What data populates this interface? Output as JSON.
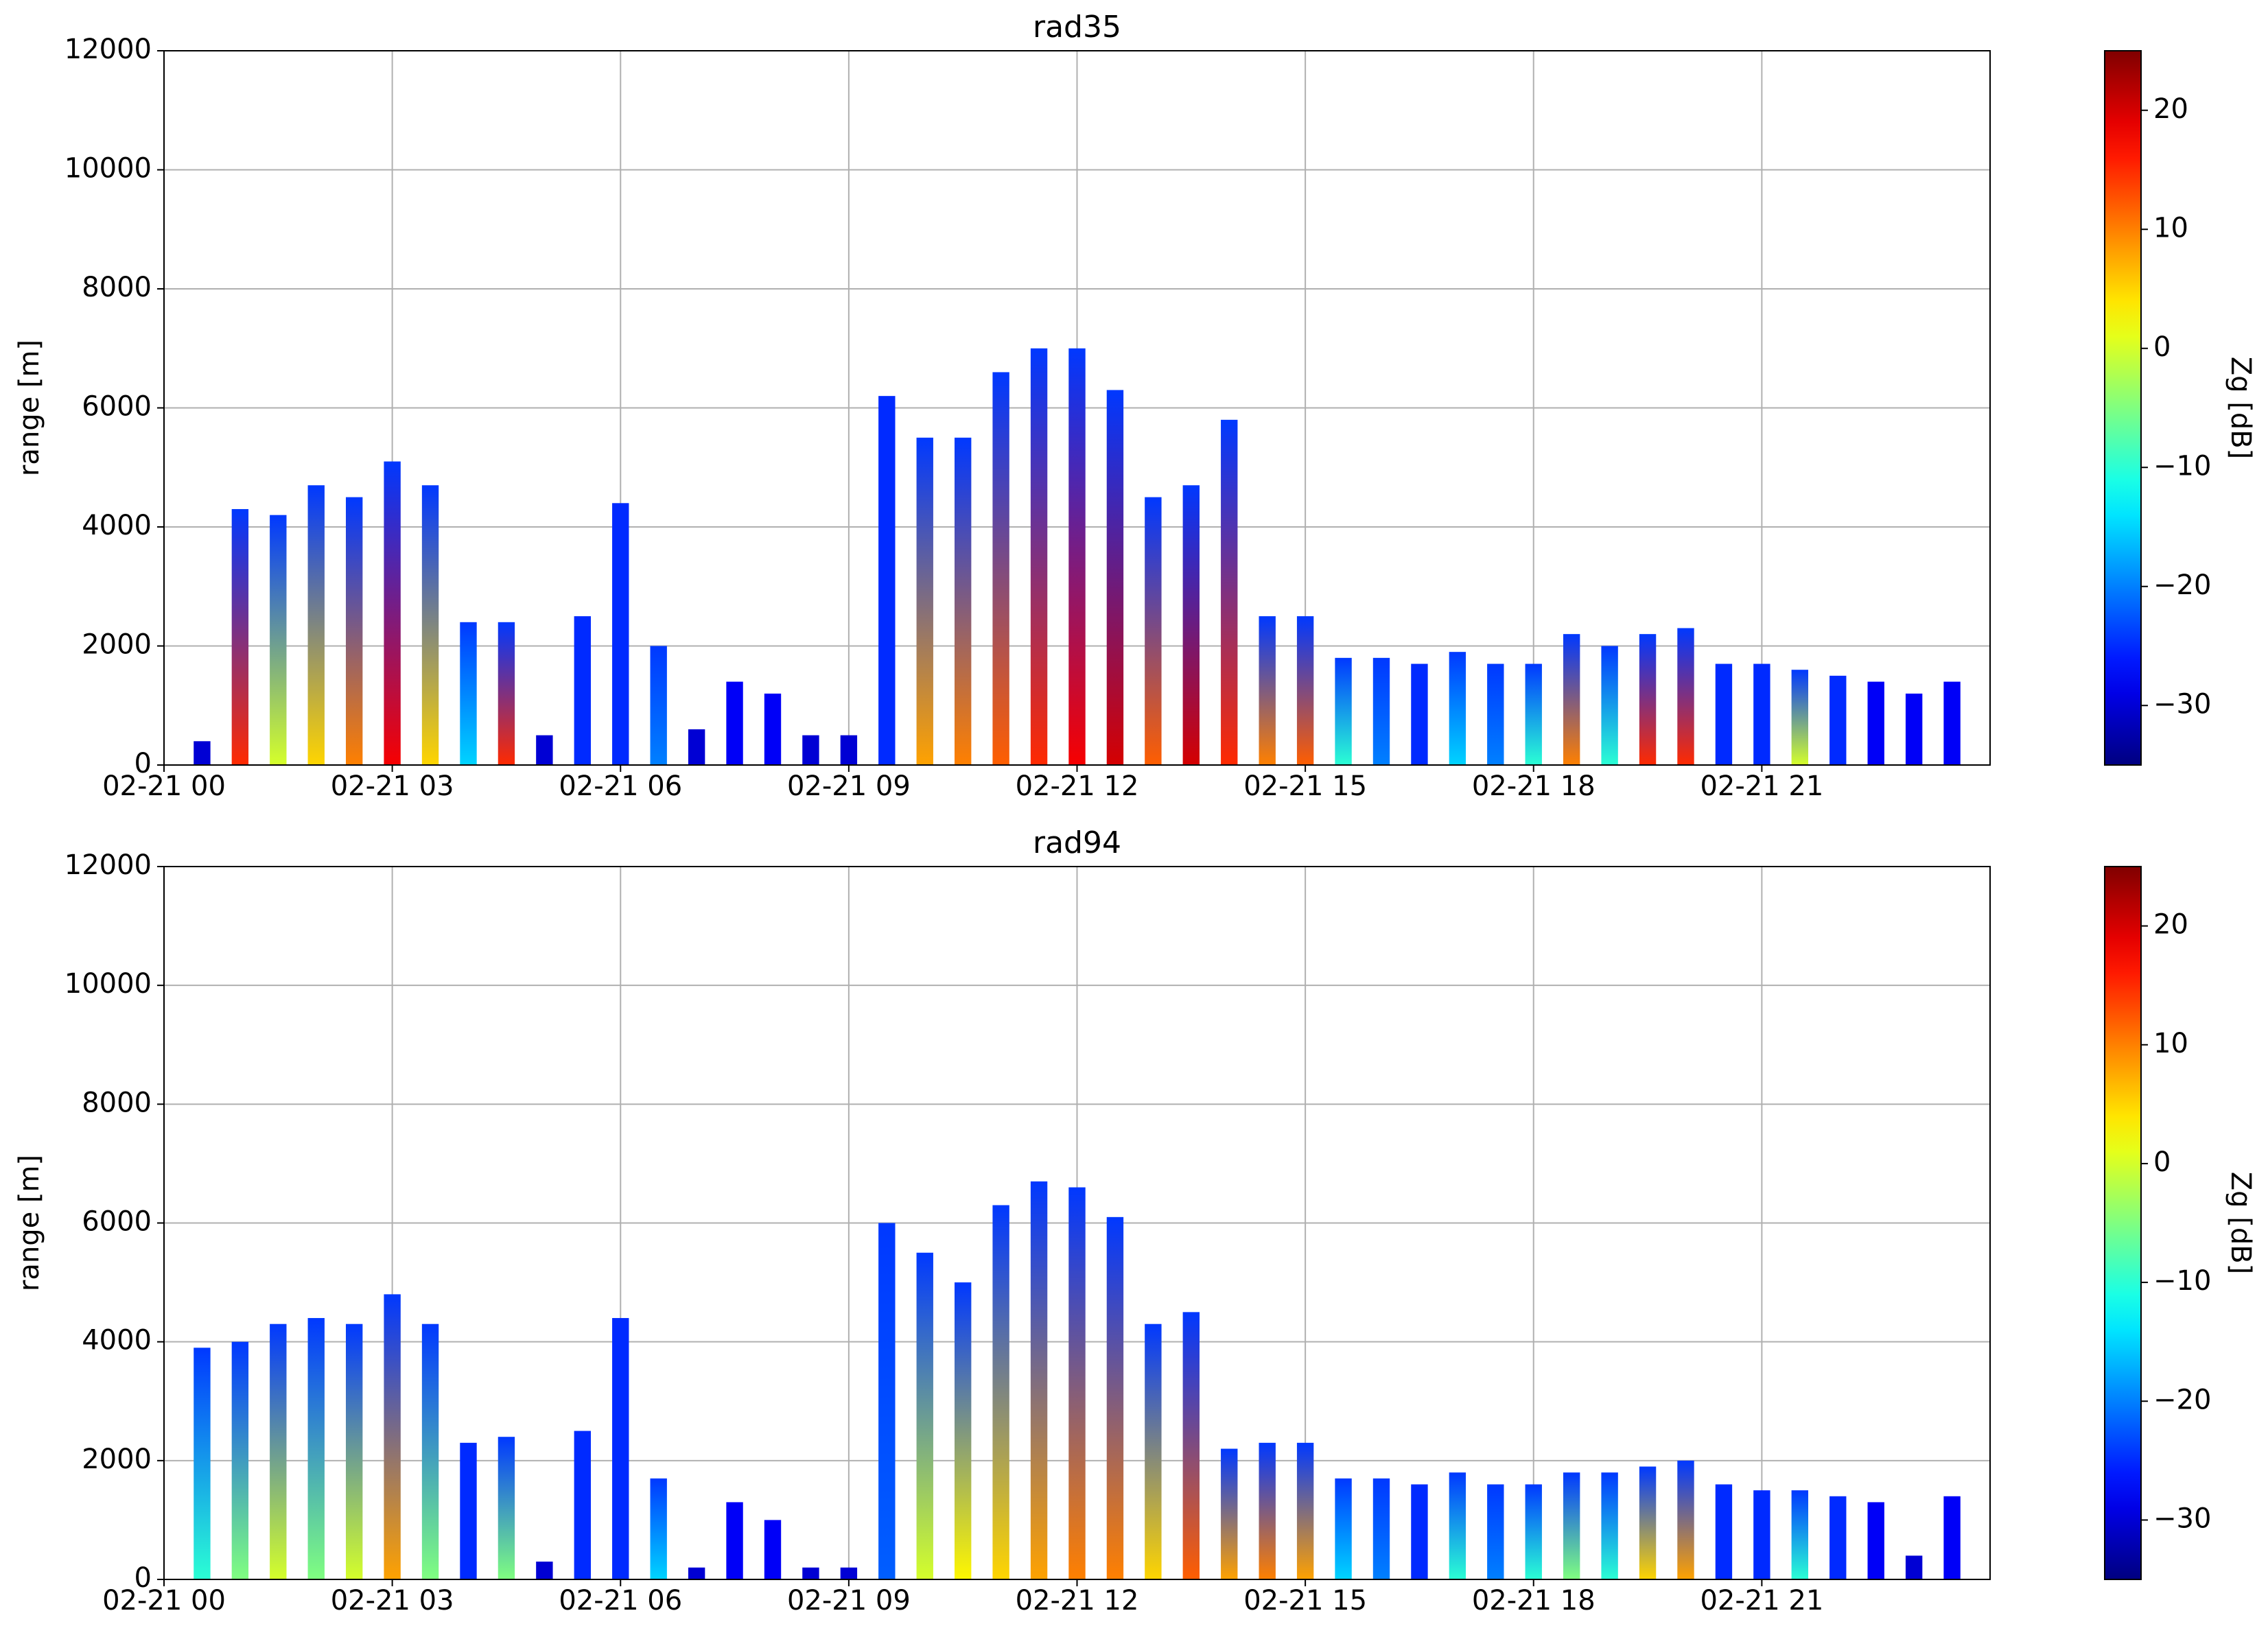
{
  "chart_data": [
    {
      "type": "heatmap",
      "title": "rad35",
      "ylabel": "range [m]",
      "colormap": "jet",
      "grid": true,
      "xlim": [
        0,
        24
      ],
      "xticks": [
        {
          "value": 0,
          "label": "02-21 00"
        },
        {
          "value": 3,
          "label": "02-21 03"
        },
        {
          "value": 6,
          "label": "02-21 06"
        },
        {
          "value": 9,
          "label": "02-21 09"
        },
        {
          "value": 12,
          "label": "02-21 12"
        },
        {
          "value": 15,
          "label": "02-21 15"
        },
        {
          "value": 18,
          "label": "02-21 18"
        },
        {
          "value": 21,
          "label": "02-21 21"
        }
      ],
      "ylim": [
        0,
        12000
      ],
      "yticks": [
        0,
        2000,
        4000,
        6000,
        8000,
        10000,
        12000
      ],
      "x": [
        0.5,
        1.0,
        1.5,
        2.0,
        2.5,
        3.0,
        3.5,
        4.0,
        4.5,
        5.0,
        5.5,
        6.0,
        6.5,
        7.0,
        7.5,
        8.0,
        8.5,
        9.0,
        9.5,
        10.0,
        10.5,
        11.0,
        11.5,
        12.0,
        12.5,
        13.0,
        13.5,
        14.0,
        14.5,
        15.0,
        15.5,
        16.0,
        16.5,
        17.0,
        17.5,
        18.0,
        18.5,
        19.0,
        19.5,
        20.0,
        20.5,
        21.0,
        21.5,
        22.0,
        22.5,
        23.0,
        23.5
      ],
      "tops": [
        400,
        4300,
        4200,
        4700,
        4500,
        5100,
        4700,
        2400,
        2400,
        500,
        2500,
        4400,
        2000,
        600,
        1400,
        1200,
        500,
        500,
        6200,
        5500,
        5500,
        6600,
        7000,
        7000,
        6300,
        4500,
        4700,
        5800,
        2500,
        2500,
        1800,
        1800,
        1700,
        1900,
        1700,
        1700,
        2200,
        2000,
        2200,
        2300,
        1700,
        1700,
        1600,
        1500,
        1400,
        1200,
        1400
      ],
      "values": [
        -30,
        15,
        0,
        5,
        10,
        18,
        5,
        -15,
        15,
        -30,
        -25,
        -25,
        -20,
        -30,
        -28,
        -28,
        -30,
        -30,
        -25,
        8,
        10,
        12,
        15,
        18,
        20,
        12,
        20,
        15,
        10,
        12,
        -10,
        -20,
        -25,
        -15,
        -20,
        -10,
        10,
        -10,
        15,
        15,
        -25,
        -25,
        0,
        -25,
        -28,
        -28,
        -28
      ],
      "colorbar": {
        "label": "Zg [dB]",
        "lim": [
          -35,
          25
        ],
        "ticks": [
          {
            "value": -30,
            "label": "−30"
          },
          {
            "value": -20,
            "label": "−20"
          },
          {
            "value": -10,
            "label": "−10"
          },
          0,
          10,
          20
        ]
      }
    },
    {
      "type": "heatmap",
      "title": "rad94",
      "ylabel": "range [m]",
      "colormap": "jet",
      "grid": true,
      "xlim": [
        0,
        24
      ],
      "xticks": [
        {
          "value": 0,
          "label": "02-21 00"
        },
        {
          "value": 3,
          "label": "02-21 03"
        },
        {
          "value": 6,
          "label": "02-21 06"
        },
        {
          "value": 9,
          "label": "02-21 09"
        },
        {
          "value": 12,
          "label": "02-21 12"
        },
        {
          "value": 15,
          "label": "02-21 15"
        },
        {
          "value": 18,
          "label": "02-21 18"
        },
        {
          "value": 21,
          "label": "02-21 21"
        }
      ],
      "ylim": [
        0,
        12000
      ],
      "yticks": [
        0,
        2000,
        4000,
        6000,
        8000,
        10000,
        12000
      ],
      "x": [
        0.5,
        1.0,
        1.5,
        2.0,
        2.5,
        3.0,
        3.5,
        4.0,
        4.5,
        5.0,
        5.5,
        6.0,
        6.5,
        7.0,
        7.5,
        8.0,
        8.5,
        9.0,
        9.5,
        10.0,
        10.5,
        11.0,
        11.5,
        12.0,
        12.5,
        13.0,
        13.5,
        14.0,
        14.5,
        15.0,
        15.5,
        16.0,
        16.5,
        17.0,
        17.5,
        18.0,
        18.5,
        19.0,
        19.5,
        20.0,
        20.5,
        21.0,
        21.5,
        22.0,
        22.5,
        23.0,
        23.5
      ],
      "tops": [
        3900,
        4000,
        4300,
        4400,
        4300,
        4800,
        4300,
        2300,
        2400,
        300,
        2500,
        4400,
        1700,
        200,
        1300,
        1000,
        200,
        200,
        6000,
        5500,
        5000,
        6300,
        6700,
        6600,
        6100,
        4300,
        4500,
        2200,
        2300,
        2300,
        1700,
        1700,
        1600,
        1800,
        1600,
        1600,
        1800,
        1800,
        1900,
        2000,
        1600,
        1500,
        1500,
        1400,
        1300,
        400,
        1400
      ],
      "values": [
        -10,
        -5,
        0,
        -5,
        0,
        8,
        -5,
        -25,
        -5,
        -30,
        -25,
        -25,
        -15,
        -30,
        -28,
        -28,
        -30,
        -30,
        -22,
        0,
        3,
        5,
        8,
        10,
        10,
        5,
        12,
        8,
        10,
        8,
        -15,
        -20,
        -25,
        -10,
        -20,
        -10,
        -5,
        -10,
        5,
        8,
        -25,
        -25,
        -10,
        -25,
        -28,
        -30,
        -28
      ],
      "colorbar": {
        "label": "Zg [dB]",
        "lim": [
          -35,
          25
        ],
        "ticks": [
          {
            "value": -30,
            "label": "−30"
          },
          {
            "value": -20,
            "label": "−20"
          },
          {
            "value": -10,
            "label": "−10"
          },
          0,
          10,
          20
        ]
      }
    }
  ]
}
